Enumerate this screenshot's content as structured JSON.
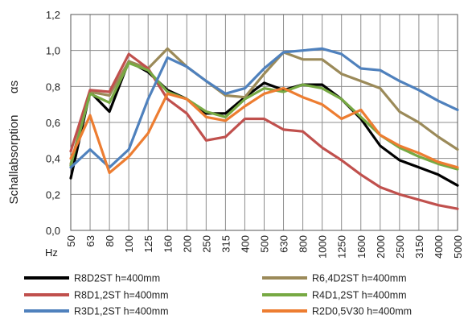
{
  "chart_data": {
    "type": "line",
    "ylabel": "Schallabsorption",
    "ylabel_symbol": "αs",
    "x_unit": "Hz",
    "ylim": [
      0,
      1.2
    ],
    "yticks": [
      "0,0",
      "0,2",
      "0,4",
      "0,6",
      "0,8",
      "1,0",
      "1,2"
    ],
    "ytick_values": [
      0,
      0.2,
      0.4,
      0.6,
      0.8,
      1.0,
      1.2
    ],
    "grid": true,
    "legend_position": "bottom",
    "x": [
      "50",
      "63",
      "80",
      "100",
      "125",
      "160",
      "200",
      "250",
      "315",
      "400",
      "500",
      "630",
      "800",
      "1000",
      "1250",
      "1600",
      "2000",
      "2500",
      "3150",
      "4000",
      "5000"
    ],
    "series": [
      {
        "name": "R8D2ST h=400mm",
        "color": "#000000",
        "values": [
          0.29,
          0.77,
          0.66,
          0.94,
          0.88,
          0.78,
          0.73,
          0.65,
          0.65,
          0.74,
          0.82,
          0.78,
          0.81,
          0.81,
          0.73,
          0.62,
          0.47,
          0.39,
          0.35,
          0.31,
          0.25
        ]
      },
      {
        "name": "R6,4D2ST h=400mm",
        "color": "#9b8a59",
        "values": [
          0.37,
          0.77,
          0.75,
          0.94,
          0.9,
          1.01,
          0.91,
          0.83,
          0.75,
          0.74,
          0.87,
          0.99,
          0.95,
          0.95,
          0.87,
          0.83,
          0.79,
          0.66,
          0.6,
          0.52,
          0.45
        ]
      },
      {
        "name": "R8D1,2ST h=400mm",
        "color": "#c0504d",
        "values": [
          0.44,
          0.78,
          0.77,
          0.98,
          0.9,
          0.73,
          0.65,
          0.5,
          0.52,
          0.62,
          0.62,
          0.56,
          0.55,
          0.46,
          0.39,
          0.31,
          0.24,
          0.2,
          0.17,
          0.14,
          0.12
        ]
      },
      {
        "name": "R4D1,2ST h=400mm",
        "color": "#77a943",
        "values": [
          0.36,
          0.76,
          0.71,
          0.93,
          0.89,
          0.77,
          0.73,
          0.66,
          0.63,
          0.73,
          0.79,
          0.77,
          0.81,
          0.79,
          0.73,
          0.63,
          0.53,
          0.46,
          0.41,
          0.37,
          0.34
        ]
      },
      {
        "name": "R3D1,2ST h=400mm",
        "color": "#4f81bd",
        "values": [
          0.35,
          0.45,
          0.35,
          0.45,
          0.73,
          0.96,
          0.91,
          0.83,
          0.76,
          0.79,
          0.9,
          0.99,
          1.0,
          1.01,
          0.98,
          0.9,
          0.89,
          0.83,
          0.78,
          0.72,
          0.67
        ]
      },
      {
        "name": "R2D0,5V30 h=400mm",
        "color": "#ed7d31",
        "values": [
          0.4,
          0.64,
          0.32,
          0.41,
          0.54,
          0.76,
          0.73,
          0.63,
          0.61,
          0.69,
          0.76,
          0.79,
          0.74,
          0.7,
          0.62,
          0.67,
          0.53,
          0.47,
          0.43,
          0.38,
          0.35
        ]
      }
    ]
  }
}
